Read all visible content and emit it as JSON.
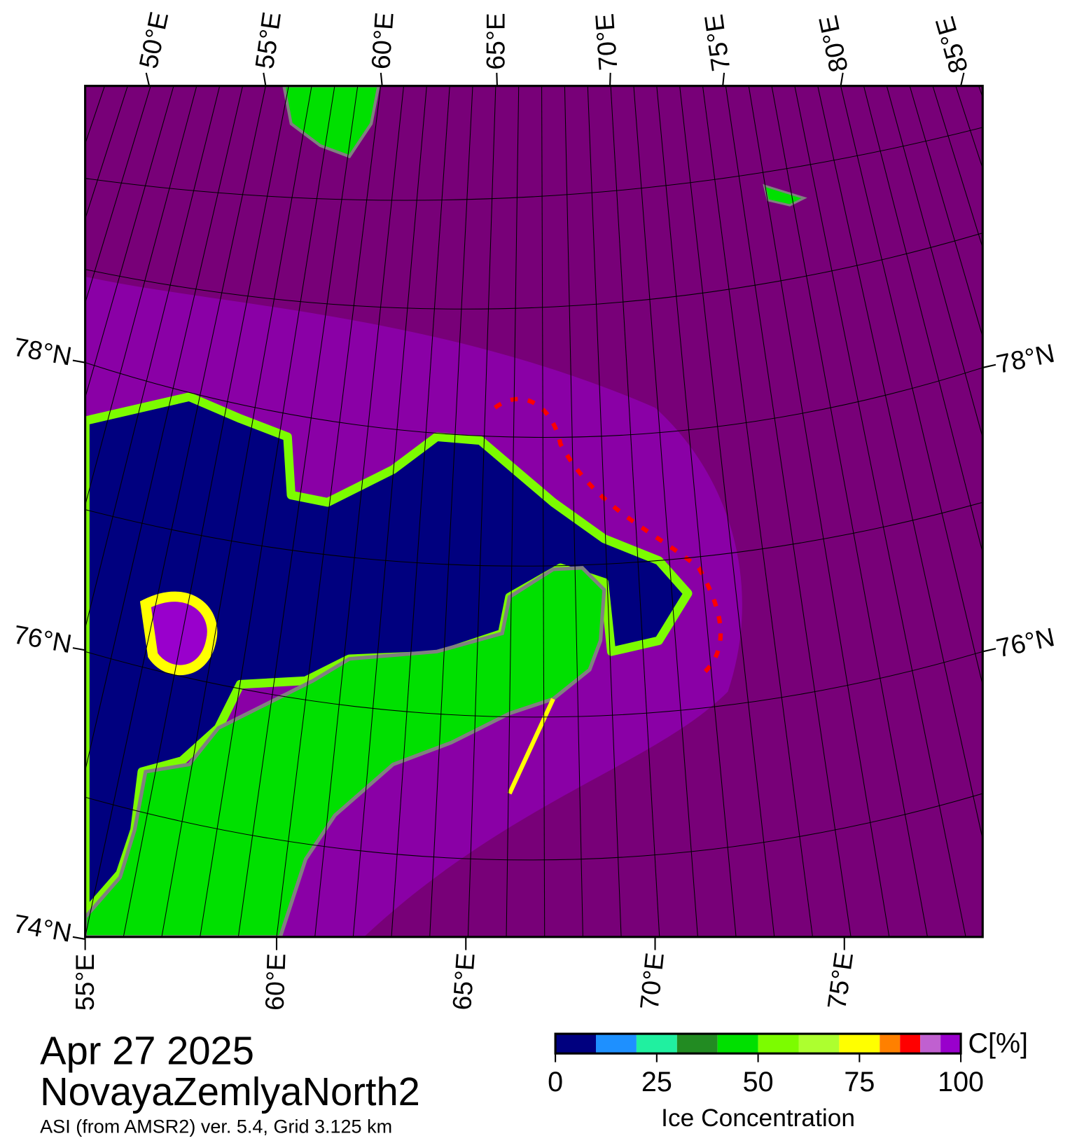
{
  "map": {
    "top_longitude_labels": [
      "50°E",
      "55°E",
      "60°E",
      "65°E",
      "70°E",
      "75°E",
      "80°E",
      "85°E"
    ],
    "bottom_longitude_labels": [
      "55°E",
      "60°E",
      "65°E",
      "70°E",
      "75°E"
    ],
    "left_latitude_labels": [
      "78°N",
      "76°N",
      "74°N"
    ],
    "right_latitude_labels": [
      "78°N",
      "76°N"
    ]
  },
  "date": "Apr 27 2025",
  "region": "NovayaZemlyaNorth2",
  "source": "ASI (from AMSR2) ver. 5.4,  Grid 3.125 km",
  "colorbar": {
    "label": "Ice Concentration",
    "unit": "C[%]",
    "ticks": [
      0,
      25,
      50,
      75,
      100
    ],
    "bounds": [
      0,
      10,
      20,
      30,
      40,
      50,
      60,
      70,
      80,
      85,
      90,
      95,
      100
    ],
    "colors": [
      "#00007f",
      "#1e90ff",
      "#20f0a0",
      "#228b22",
      "#00e000",
      "#7cfc00",
      "#adff2f",
      "#ffff00",
      "#ff8000",
      "#ff0000",
      "#c060d0",
      "#9900cc"
    ]
  }
}
